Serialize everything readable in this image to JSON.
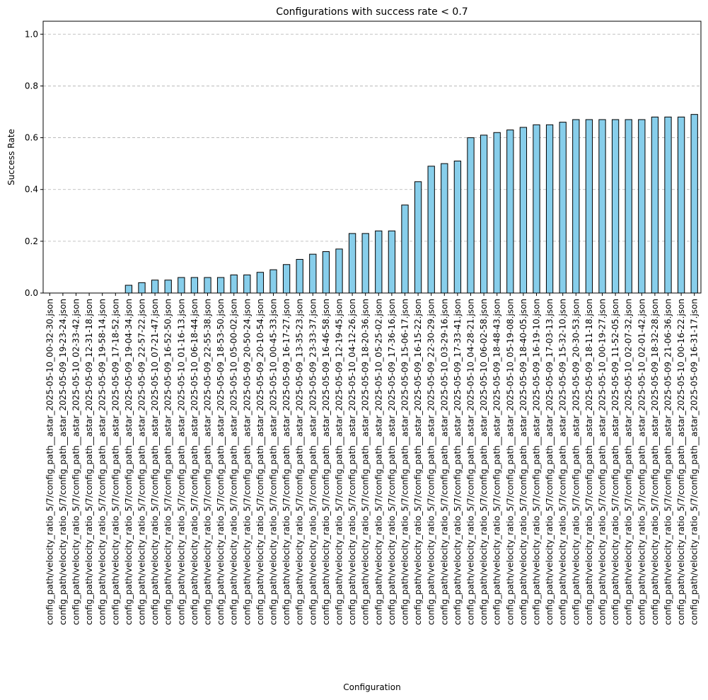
{
  "chart_data": {
    "type": "bar",
    "title": "Configurations with success rate < 0.7",
    "xlabel": "Configuration",
    "ylabel": "Success Rate",
    "ylim": [
      0,
      1.05
    ],
    "yticks": [
      "0.0",
      "0.2",
      "0.4",
      "0.6",
      "0.8",
      "1.0"
    ],
    "grid": "y-dashed",
    "bar_color": "#87ceeb",
    "bar_edge_color": "#000000",
    "categories": [
      "config_path/velocity_ratio_5/7/config_path__astar_2025-05-10_00-32-30.json",
      "config_path/velocity_ratio_5/7/config_path__astar_2025-05-09_19-23-24.json",
      "config_path/velocity_ratio_5/7/config_path__astar_2025-05-10_02-33-42.json",
      "config_path/velocity_ratio_5/7/config_path__astar_2025-05-09_12-31-18.json",
      "config_path/velocity_ratio_5/7/config_path__astar_2025-05-09_19-58-14.json",
      "config_path/velocity_ratio_5/7/config_path__astar_2025-05-09_17-18-52.json",
      "config_path/velocity_ratio_5/7/config_path__astar_2025-05-09_19-04-34.json",
      "config_path/velocity_ratio_5/7/config_path__astar_2025-05-09_22-57-22.json",
      "config_path/velocity_ratio_5/7/config_path__astar_2025-05-10_07-21-47.json",
      "config_path/velocity_ratio_5/7/config_path__astar_2025-05-09_16-52-50.json",
      "config_path/velocity_ratio_5/7/config_path__astar_2025-05-10_01-16-13.json",
      "config_path/velocity_ratio_5/7/config_path__astar_2025-05-10_06-18-44.json",
      "config_path/velocity_ratio_5/7/config_path__astar_2025-05-09_22-55-38.json",
      "config_path/velocity_ratio_5/7/config_path__astar_2025-05-09_18-53-50.json",
      "config_path/velocity_ratio_5/7/config_path__astar_2025-05-10_05-00-02.json",
      "config_path/velocity_ratio_5/7/config_path__astar_2025-05-09_20-50-24.json",
      "config_path/velocity_ratio_5/7/config_path__astar_2025-05-09_20-10-54.json",
      "config_path/velocity_ratio_5/7/config_path__astar_2025-05-10_00-45-33.json",
      "config_path/velocity_ratio_5/7/config_path__astar_2025-05-09_16-17-27.json",
      "config_path/velocity_ratio_5/7/config_path__astar_2025-05-09_13-35-23.json",
      "config_path/velocity_ratio_5/7/config_path__astar_2025-05-09_23-33-37.json",
      "config_path/velocity_ratio_5/7/config_path__astar_2025-05-09_16-46-58.json",
      "config_path/velocity_ratio_5/7/config_path__astar_2025-05-09_12-19-45.json",
      "config_path/velocity_ratio_5/7/config_path__astar_2025-05-10_04-12-26.json",
      "config_path/velocity_ratio_5/7/config_path__astar_2025-05-09_18-20-36.json",
      "config_path/velocity_ratio_5/7/config_path__astar_2025-05-10_05-25-02.json",
      "config_path/velocity_ratio_5/7/config_path__astar_2025-05-09_17-36-16.json",
      "config_path/velocity_ratio_5/7/config_path__astar_2025-05-09_15-06-17.json",
      "config_path/velocity_ratio_5/7/config_path__astar_2025-05-09_16-15-22.json",
      "config_path/velocity_ratio_5/7/config_path__astar_2025-05-09_22-30-29.json",
      "config_path/velocity_ratio_5/7/config_path__astar_2025-05-10_03-29-16.json",
      "config_path/velocity_ratio_5/7/config_path__astar_2025-05-09_17-33-41.json",
      "config_path/velocity_ratio_5/7/config_path__astar_2025-05-10_04-28-21.json",
      "config_path/velocity_ratio_5/7/config_path__astar_2025-05-10_06-02-58.json",
      "config_path/velocity_ratio_5/7/config_path__astar_2025-05-09_18-48-43.json",
      "config_path/velocity_ratio_5/7/config_path__astar_2025-05-10_05-19-08.json",
      "config_path/velocity_ratio_5/7/config_path__astar_2025-05-09_18-40-05.json",
      "config_path/velocity_ratio_5/7/config_path__astar_2025-05-09_16-19-10.json",
      "config_path/velocity_ratio_5/7/config_path__astar_2025-05-09_17-03-13.json",
      "config_path/velocity_ratio_5/7/config_path__astar_2025-05-09_15-32-10.json",
      "config_path/velocity_ratio_5/7/config_path__astar_2025-05-09_20-30-53.json",
      "config_path/velocity_ratio_5/7/config_path__astar_2025-05-09_18-11-18.json",
      "config_path/velocity_ratio_5/7/config_path__astar_2025-05-10_00-19-27.json",
      "config_path/velocity_ratio_5/7/config_path__astar_2025-05-09_11-52-05.json",
      "config_path/velocity_ratio_5/7/config_path__astar_2025-05-10_02-07-32.json",
      "config_path/velocity_ratio_5/7/config_path__astar_2025-05-10_02-01-42.json",
      "config_path/velocity_ratio_5/7/config_path__astar_2025-05-09_18-32-28.json",
      "config_path/velocity_ratio_5/7/config_path__astar_2025-05-09_21-06-36.json",
      "config_path/velocity_ratio_5/7/config_path__astar_2025-05-10_00-16-22.json",
      "config_path/velocity_ratio_5/7/config_path__astar_2025-05-09_16-31-17.json"
    ],
    "values": [
      0,
      0,
      0,
      0,
      0,
      0,
      0.03,
      0.04,
      0.05,
      0.05,
      0.06,
      0.06,
      0.06,
      0.06,
      0.07,
      0.07,
      0.08,
      0.09,
      0.11,
      0.13,
      0.15,
      0.16,
      0.17,
      0.23,
      0.23,
      0.24,
      0.24,
      0.34,
      0.43,
      0.49,
      0.5,
      0.51,
      0.6,
      0.61,
      0.62,
      0.63,
      0.64,
      0.65,
      0.65,
      0.66,
      0.67,
      0.67,
      0.67,
      0.67,
      0.67,
      0.67,
      0.68,
      0.68,
      0.68,
      0.69
    ]
  }
}
